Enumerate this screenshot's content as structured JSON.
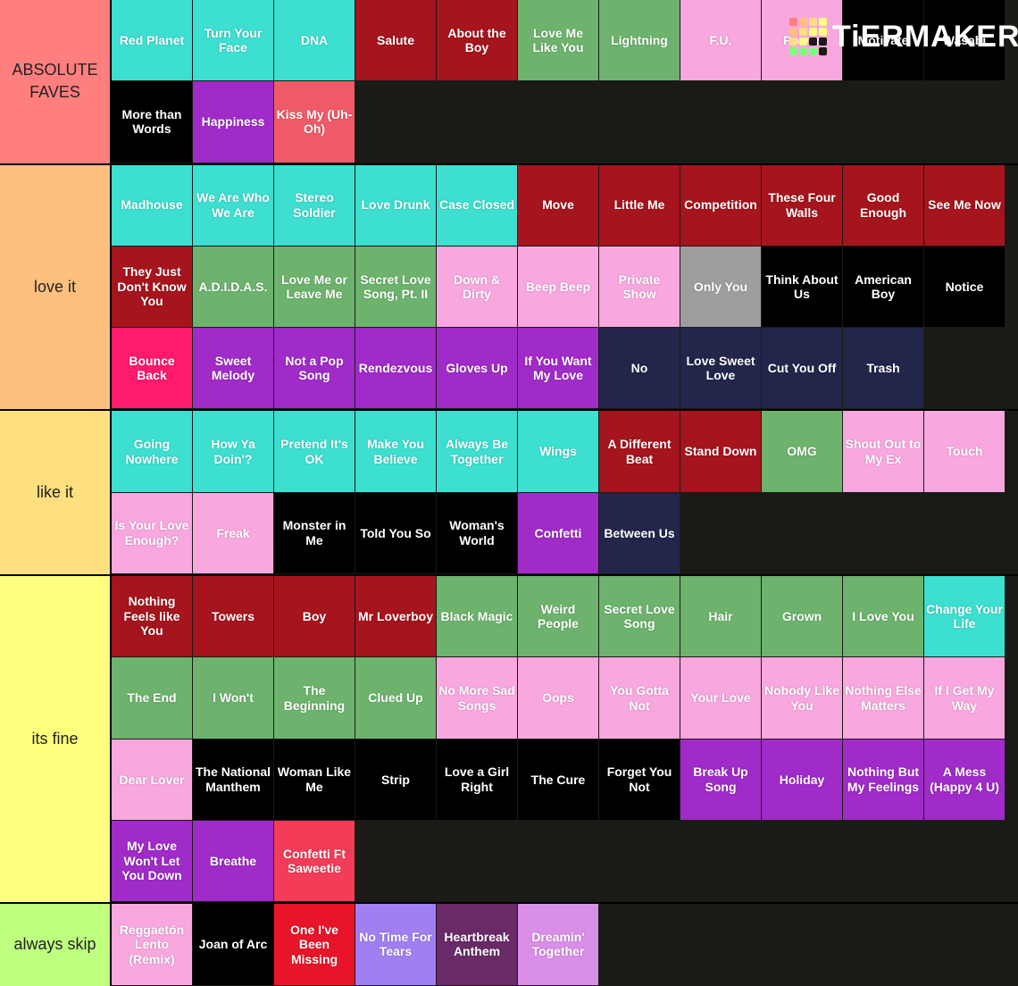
{
  "logo": "TiERMAKER",
  "tiers": [
    {
      "label": "ABSOLUTE FAVES",
      "color": "#ff7f7f",
      "items": [
        {
          "text": "Red Planet",
          "color": "#3ddfd1"
        },
        {
          "text": "Turn Your Face",
          "color": "#3ddfd1"
        },
        {
          "text": "DNA",
          "color": "#3ddfd1"
        },
        {
          "text": "Salute",
          "color": "#a6141d"
        },
        {
          "text": "About the Boy",
          "color": "#a6141d"
        },
        {
          "text": "Love Me Like You",
          "color": "#6db36d"
        },
        {
          "text": "Lightning",
          "color": "#6db36d"
        },
        {
          "text": "F.U.",
          "color": "#f8a8de"
        },
        {
          "text": "Power",
          "color": "#f8a8de"
        },
        {
          "text": "Motivate",
          "color": "#000000"
        },
        {
          "text": "Wasabi",
          "color": "#000000"
        },
        {
          "text": "More than Words",
          "color": "#000000"
        },
        {
          "text": "Happiness",
          "color": "#a02bc8"
        },
        {
          "text": "Kiss My (Uh-Oh)",
          "color": "#f05a68"
        }
      ]
    },
    {
      "label": "love it",
      "color": "#ffbf7f",
      "items": [
        {
          "text": "Madhouse",
          "color": "#3ddfd1"
        },
        {
          "text": "We Are Who We Are",
          "color": "#3ddfd1"
        },
        {
          "text": "Stereo Soldier",
          "color": "#3ddfd1"
        },
        {
          "text": "Love Drunk",
          "color": "#3ddfd1"
        },
        {
          "text": "Case Closed",
          "color": "#3ddfd1"
        },
        {
          "text": "Move",
          "color": "#a6141d"
        },
        {
          "text": "Little Me",
          "color": "#a6141d"
        },
        {
          "text": "Competition",
          "color": "#a6141d"
        },
        {
          "text": "These Four Walls",
          "color": "#a6141d"
        },
        {
          "text": "Good Enough",
          "color": "#a6141d"
        },
        {
          "text": "See Me Now",
          "color": "#a6141d"
        },
        {
          "text": "They Just Don't Know You",
          "color": "#a6141d"
        },
        {
          "text": "A.D.I.D.A.S.",
          "color": "#6db36d"
        },
        {
          "text": "Love Me or Leave Me",
          "color": "#6db36d"
        },
        {
          "text": "Secret Love Song, Pt. II",
          "color": "#6db36d"
        },
        {
          "text": "Down & Dirty",
          "color": "#f8a8de"
        },
        {
          "text": "Beep Beep",
          "color": "#f8a8de"
        },
        {
          "text": "Private Show",
          "color": "#f8a8de"
        },
        {
          "text": "Only You",
          "color": "#9e9e9e"
        },
        {
          "text": "Think About Us",
          "color": "#000000"
        },
        {
          "text": "American Boy",
          "color": "#000000"
        },
        {
          "text": "Notice",
          "color": "#000000"
        },
        {
          "text": "Bounce Back",
          "color": "#ff1a6c"
        },
        {
          "text": "Sweet Melody",
          "color": "#a02bc8"
        },
        {
          "text": "Not a Pop Song",
          "color": "#a02bc8"
        },
        {
          "text": "Rendezvous",
          "color": "#a02bc8"
        },
        {
          "text": "Gloves Up",
          "color": "#a02bc8"
        },
        {
          "text": "If You Want My Love",
          "color": "#a02bc8"
        },
        {
          "text": "No",
          "color": "#22264a"
        },
        {
          "text": "Love Sweet Love",
          "color": "#22264a"
        },
        {
          "text": "Cut You Off",
          "color": "#22264a"
        },
        {
          "text": "Trash",
          "color": "#22264a"
        }
      ]
    },
    {
      "label": "like it",
      "color": "#ffdf7f",
      "items": [
        {
          "text": "Going Nowhere",
          "color": "#3ddfd1"
        },
        {
          "text": "How Ya Doin'?",
          "color": "#3ddfd1"
        },
        {
          "text": "Pretend It's OK",
          "color": "#3ddfd1"
        },
        {
          "text": "Make You Believe",
          "color": "#3ddfd1"
        },
        {
          "text": "Always Be Together",
          "color": "#3ddfd1"
        },
        {
          "text": "Wings",
          "color": "#3ddfd1"
        },
        {
          "text": "A Different Beat",
          "color": "#a6141d"
        },
        {
          "text": "Stand Down",
          "color": "#a6141d"
        },
        {
          "text": "OMG",
          "color": "#6db36d"
        },
        {
          "text": "Shout Out to My Ex",
          "color": "#f8a8de"
        },
        {
          "text": "Touch",
          "color": "#f8a8de"
        },
        {
          "text": "Is Your Love Enough?",
          "color": "#f8a8de"
        },
        {
          "text": "Freak",
          "color": "#f8a8de"
        },
        {
          "text": "Monster in Me",
          "color": "#000000"
        },
        {
          "text": "Told You So",
          "color": "#000000"
        },
        {
          "text": "Woman's World",
          "color": "#000000"
        },
        {
          "text": "Confetti",
          "color": "#a02bc8"
        },
        {
          "text": "Between Us",
          "color": "#22264a"
        }
      ]
    },
    {
      "label": "its fine",
      "color": "#ffff7f",
      "items": [
        {
          "text": "Nothing Feels like You",
          "color": "#a6141d"
        },
        {
          "text": "Towers",
          "color": "#a6141d"
        },
        {
          "text": "Boy",
          "color": "#a6141d"
        },
        {
          "text": "Mr Loverboy",
          "color": "#a6141d"
        },
        {
          "text": "Black Magic",
          "color": "#6db36d"
        },
        {
          "text": "Weird People",
          "color": "#6db36d"
        },
        {
          "text": "Secret Love Song",
          "color": "#6db36d"
        },
        {
          "text": "Hair",
          "color": "#6db36d"
        },
        {
          "text": "Grown",
          "color": "#6db36d"
        },
        {
          "text": "I Love You",
          "color": "#6db36d"
        },
        {
          "text": "Change Your Life",
          "color": "#3ddfd1"
        },
        {
          "text": "The End",
          "color": "#6db36d"
        },
        {
          "text": "I Won't",
          "color": "#6db36d"
        },
        {
          "text": "The Beginning",
          "color": "#6db36d"
        },
        {
          "text": "Clued Up",
          "color": "#6db36d"
        },
        {
          "text": "No More Sad Songs",
          "color": "#f8a8de"
        },
        {
          "text": "Oops",
          "color": "#f8a8de"
        },
        {
          "text": "You Gotta Not",
          "color": "#f8a8de"
        },
        {
          "text": "Your Love",
          "color": "#f8a8de"
        },
        {
          "text": "Nobody Like You",
          "color": "#f8a8de"
        },
        {
          "text": "Nothing Else Matters",
          "color": "#f8a8de"
        },
        {
          "text": "If I Get My Way",
          "color": "#f8a8de"
        },
        {
          "text": "Dear Lover",
          "color": "#f8a8de"
        },
        {
          "text": "The National Manthem",
          "color": "#000000"
        },
        {
          "text": "Woman Like Me",
          "color": "#000000"
        },
        {
          "text": "Strip",
          "color": "#000000"
        },
        {
          "text": "Love a Girl Right",
          "color": "#000000"
        },
        {
          "text": "The Cure",
          "color": "#000000"
        },
        {
          "text": "Forget You Not",
          "color": "#000000"
        },
        {
          "text": "Break Up Song",
          "color": "#a02bc8"
        },
        {
          "text": "Holiday",
          "color": "#a02bc8"
        },
        {
          "text": "Nothing But My Feelings",
          "color": "#a02bc8"
        },
        {
          "text": "A Mess (Happy 4 U)",
          "color": "#a02bc8"
        },
        {
          "text": "My Love Won't Let You Down",
          "color": "#a02bc8"
        },
        {
          "text": "Breathe",
          "color": "#a02bc8"
        },
        {
          "text": "Confetti Ft Saweetie",
          "color": "#f23c58"
        }
      ]
    },
    {
      "label": "always skip",
      "color": "#bfff7f",
      "items": [
        {
          "text": "Reggaetón Lento (Remix)",
          "color": "#f8a8de"
        },
        {
          "text": "Joan of Arc",
          "color": "#000000"
        },
        {
          "text": "One I've Been Missing",
          "color": "#e8142a"
        },
        {
          "text": "No Time For Tears",
          "color": "#a07ff2"
        },
        {
          "text": "Heartbreak Anthem",
          "color": "#6a2a68"
        },
        {
          "text": "Dreamin' Together",
          "color": "#d98ee8"
        }
      ]
    }
  ]
}
